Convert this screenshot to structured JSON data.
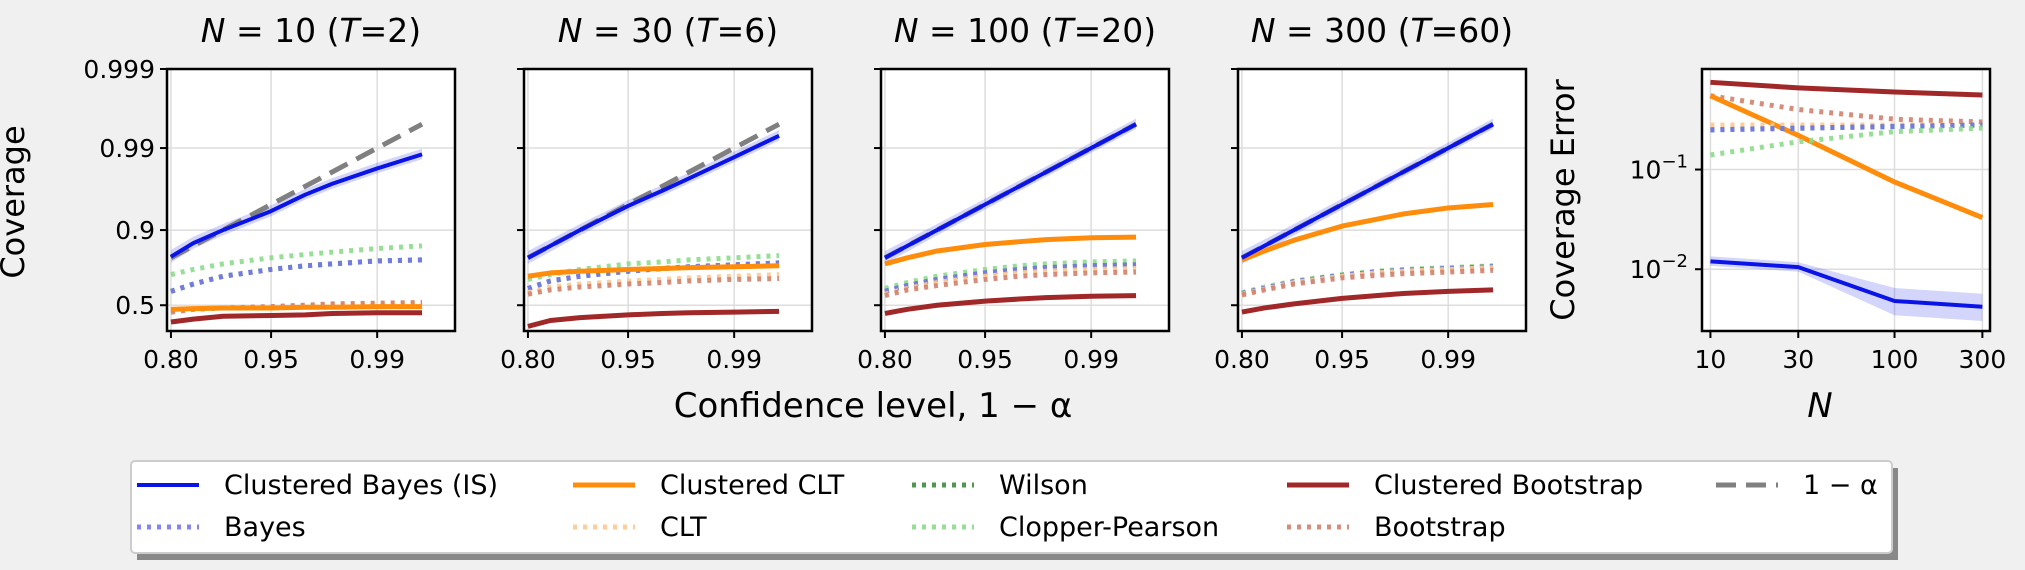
{
  "colors": {
    "background": "#f0f0f0",
    "clustered_bayes": "#0a14e6",
    "bayes": "#7878f0",
    "clustered_clt": "#ff8c0a",
    "clt": "#ffc891",
    "wilson": "#3c8c3c",
    "clopper_pearson": "#8cdc8c",
    "clustered_bootstrap": "#a02828",
    "bootstrap": "#d2826e",
    "nominal": "#808080"
  },
  "figure": {
    "y_axis_label": "Coverage",
    "x_axis_label": "Confidence level, 1 − α",
    "right_y_axis_label": "Coverage Error",
    "right_x_axis_label": "N"
  },
  "legend": {
    "placement": "bottom-center",
    "entries": [
      {
        "key": "clustered_bayes",
        "label": "Clustered Bayes (IS)",
        "style": "solid"
      },
      {
        "key": "bayes",
        "label": "Bayes",
        "style": "dotted"
      },
      {
        "key": "clustered_clt",
        "label": "Clustered CLT",
        "style": "solid"
      },
      {
        "key": "clt",
        "label": "CLT",
        "style": "dotted"
      },
      {
        "key": "wilson",
        "label": "Wilson",
        "style": "dotted"
      },
      {
        "key": "clopper_pearson",
        "label": "Clopper-Pearson",
        "style": "dotted"
      },
      {
        "key": "clustered_bootstrap",
        "label": "Clustered Bootstrap",
        "style": "solid"
      },
      {
        "key": "bootstrap",
        "label": "Bootstrap",
        "style": "dotted"
      },
      {
        "key": "nominal",
        "label": "1 − α",
        "style": "dashed"
      }
    ]
  },
  "chart_data": [
    {
      "type": "line",
      "title": "N = 10 (T=2)",
      "title_parts": {
        "n_label": "N",
        "n_value": " = 10 (",
        "t_label": "T",
        "t_value": "=2)"
      },
      "x_scale": "logit",
      "y_scale": "logit",
      "x_ticks": [
        "0.80",
        "0.95",
        "0.99"
      ],
      "y_ticks": [
        "0.5",
        "0.9",
        "0.99",
        "0.999"
      ],
      "show_y_tick_labels": true,
      "grid": true,
      "x": [
        0.8,
        0.85,
        0.9,
        0.95,
        0.97,
        0.98,
        0.99,
        0.995
      ],
      "series": [
        {
          "key": "nominal",
          "values": [
            0.8,
            0.85,
            0.9,
            0.95,
            0.97,
            0.98,
            0.99,
            0.995
          ]
        },
        {
          "key": "clopper_pearson",
          "values": [
            0.71,
            0.74,
            0.77,
            0.8,
            0.815,
            0.825,
            0.84,
            0.85
          ]
        },
        {
          "key": "wilson",
          "values": [
            0.6,
            0.65,
            0.7,
            0.74,
            0.76,
            0.77,
            0.785,
            0.79
          ]
        },
        {
          "key": "bayes",
          "values": [
            0.6,
            0.65,
            0.7,
            0.74,
            0.76,
            0.77,
            0.785,
            0.79
          ]
        },
        {
          "key": "clt",
          "values": [
            0.46,
            0.47,
            0.48,
            0.49,
            0.5,
            0.505,
            0.51,
            0.515
          ]
        },
        {
          "key": "bootstrap",
          "values": [
            0.45,
            0.47,
            0.48,
            0.49,
            0.5,
            0.51,
            0.515,
            0.52
          ]
        },
        {
          "key": "clustered_clt",
          "values": [
            0.47,
            0.475,
            0.48,
            0.48,
            0.485,
            0.485,
            0.49,
            0.49
          ]
        },
        {
          "key": "clustered_bootstrap",
          "values": [
            0.38,
            0.4,
            0.42,
            0.425,
            0.43,
            0.44,
            0.445,
            0.445
          ]
        },
        {
          "key": "clustered_bayes",
          "values": [
            0.805,
            0.86,
            0.9,
            0.94,
            0.962,
            0.972,
            0.982,
            0.988
          ]
        }
      ]
    },
    {
      "type": "line",
      "title": "N = 30 (T=6)",
      "title_parts": {
        "n_label": "N",
        "n_value": " = 30 (",
        "t_label": "T",
        "t_value": "=6)"
      },
      "x_scale": "logit",
      "y_scale": "logit",
      "x_ticks": [
        "0.80",
        "0.95",
        "0.99"
      ],
      "y_ticks": [
        "0.5",
        "0.9",
        "0.99",
        "0.999"
      ],
      "show_y_tick_labels": false,
      "grid": true,
      "x": [
        0.8,
        0.85,
        0.9,
        0.95,
        0.97,
        0.98,
        0.99,
        0.995
      ],
      "series": [
        {
          "key": "nominal",
          "values": [
            0.8,
            0.85,
            0.9,
            0.95,
            0.97,
            0.98,
            0.99,
            0.995
          ]
        },
        {
          "key": "clopper_pearson",
          "values": [
            0.68,
            0.71,
            0.74,
            0.77,
            0.78,
            0.79,
            0.8,
            0.81
          ]
        },
        {
          "key": "wilson",
          "values": [
            0.62,
            0.67,
            0.7,
            0.73,
            0.745,
            0.755,
            0.765,
            0.775
          ]
        },
        {
          "key": "bayes",
          "values": [
            0.62,
            0.67,
            0.7,
            0.73,
            0.745,
            0.755,
            0.765,
            0.775
          ]
        },
        {
          "key": "clt",
          "values": [
            0.59,
            0.63,
            0.65,
            0.67,
            0.68,
            0.69,
            0.7,
            0.71
          ]
        },
        {
          "key": "bootstrap",
          "values": [
            0.58,
            0.61,
            0.63,
            0.65,
            0.66,
            0.67,
            0.68,
            0.685
          ]
        },
        {
          "key": "clustered_clt",
          "values": [
            0.7,
            0.72,
            0.73,
            0.74,
            0.745,
            0.75,
            0.755,
            0.76
          ]
        },
        {
          "key": "clustered_bootstrap",
          "values": [
            0.35,
            0.39,
            0.41,
            0.43,
            0.44,
            0.445,
            0.45,
            0.455
          ]
        },
        {
          "key": "clustered_bayes",
          "values": [
            0.8,
            0.85,
            0.9,
            0.948,
            0.966,
            0.976,
            0.987,
            0.993
          ]
        }
      ]
    },
    {
      "type": "line",
      "title": "N = 100 (T=20)",
      "title_parts": {
        "n_label": "N",
        "n_value": " = 100 (",
        "t_label": "T",
        "t_value": "=20)"
      },
      "x_scale": "logit",
      "y_scale": "logit",
      "x_ticks": [
        "0.80",
        "0.95",
        "0.99"
      ],
      "y_ticks": [
        "0.5",
        "0.9",
        "0.99",
        "0.999"
      ],
      "show_y_tick_labels": false,
      "grid": true,
      "x": [
        0.8,
        0.85,
        0.9,
        0.95,
        0.97,
        0.98,
        0.99,
        0.995
      ],
      "series": [
        {
          "key": "nominal",
          "values": [
            0.8,
            0.85,
            0.9,
            0.95,
            0.97,
            0.98,
            0.99,
            0.995
          ]
        },
        {
          "key": "clopper_pearson",
          "values": [
            0.62,
            0.66,
            0.7,
            0.74,
            0.76,
            0.77,
            0.78,
            0.785
          ]
        },
        {
          "key": "wilson",
          "values": [
            0.6,
            0.64,
            0.68,
            0.72,
            0.74,
            0.75,
            0.76,
            0.765
          ]
        },
        {
          "key": "bayes",
          "values": [
            0.6,
            0.64,
            0.68,
            0.72,
            0.74,
            0.75,
            0.76,
            0.765
          ]
        },
        {
          "key": "clt",
          "values": [
            0.58,
            0.62,
            0.66,
            0.7,
            0.72,
            0.73,
            0.74,
            0.745
          ]
        },
        {
          "key": "bootstrap",
          "values": [
            0.57,
            0.61,
            0.64,
            0.68,
            0.7,
            0.71,
            0.72,
            0.725
          ]
        },
        {
          "key": "clustered_clt",
          "values": [
            0.77,
            0.8,
            0.83,
            0.855,
            0.865,
            0.872,
            0.878,
            0.88
          ]
        },
        {
          "key": "clustered_bootstrap",
          "values": [
            0.44,
            0.47,
            0.5,
            0.53,
            0.545,
            0.555,
            0.565,
            0.57
          ]
        },
        {
          "key": "clustered_bayes",
          "values": [
            0.8,
            0.85,
            0.9,
            0.95,
            0.97,
            0.98,
            0.99,
            0.995
          ]
        }
      ]
    },
    {
      "type": "line",
      "title": "N = 300 (T=60)",
      "title_parts": {
        "n_label": "N",
        "n_value": " = 300 (",
        "t_label": "T",
        "t_value": "=60)"
      },
      "x_scale": "logit",
      "y_scale": "logit",
      "x_ticks": [
        "0.80",
        "0.95",
        "0.99"
      ],
      "y_ticks": [
        "0.5",
        "0.9",
        "0.99",
        "0.999"
      ],
      "show_y_tick_labels": false,
      "grid": true,
      "x": [
        0.8,
        0.85,
        0.9,
        0.95,
        0.97,
        0.98,
        0.99,
        0.995
      ],
      "series": [
        {
          "key": "nominal",
          "values": [
            0.8,
            0.85,
            0.9,
            0.95,
            0.97,
            0.98,
            0.99,
            0.995
          ]
        },
        {
          "key": "clopper_pearson",
          "values": [
            0.59,
            0.63,
            0.67,
            0.71,
            0.73,
            0.74,
            0.75,
            0.76
          ]
        },
        {
          "key": "wilson",
          "values": [
            0.585,
            0.62,
            0.665,
            0.705,
            0.725,
            0.735,
            0.745,
            0.755
          ]
        },
        {
          "key": "bayes",
          "values": [
            0.585,
            0.62,
            0.665,
            0.705,
            0.725,
            0.735,
            0.745,
            0.755
          ]
        },
        {
          "key": "clt",
          "values": [
            0.58,
            0.615,
            0.66,
            0.7,
            0.72,
            0.73,
            0.74,
            0.75
          ]
        },
        {
          "key": "bootstrap",
          "values": [
            0.575,
            0.61,
            0.65,
            0.69,
            0.705,
            0.715,
            0.725,
            0.735
          ]
        },
        {
          "key": "clustered_clt",
          "values": [
            0.79,
            0.83,
            0.87,
            0.91,
            0.925,
            0.935,
            0.945,
            0.95
          ]
        },
        {
          "key": "clustered_bootstrap",
          "values": [
            0.45,
            0.48,
            0.51,
            0.55,
            0.57,
            0.585,
            0.6,
            0.61
          ]
        },
        {
          "key": "clustered_bayes",
          "values": [
            0.8,
            0.85,
            0.9,
            0.95,
            0.97,
            0.98,
            0.99,
            0.995
          ]
        }
      ]
    },
    {
      "type": "line",
      "title": "",
      "x_scale": "log",
      "y_scale": "log",
      "x_ticks": [
        "10",
        "30",
        "100",
        "300"
      ],
      "y_ticks": [
        "10−2",
        "10−1"
      ],
      "y_tick_parts": [
        {
          "base": "10",
          "exp": "−2"
        },
        {
          "base": "10",
          "exp": "−1"
        }
      ],
      "grid": true,
      "x": [
        10,
        30,
        100,
        300
      ],
      "series": [
        {
          "key": "clustered_bootstrap",
          "values": [
            0.75,
            0.66,
            0.6,
            0.56
          ]
        },
        {
          "key": "bootstrap",
          "values": [
            0.55,
            0.4,
            0.32,
            0.3
          ]
        },
        {
          "key": "clustered_clt",
          "values": [
            0.55,
            0.22,
            0.075,
            0.033
          ]
        },
        {
          "key": "clt",
          "values": [
            0.28,
            0.28,
            0.28,
            0.28
          ]
        },
        {
          "key": "wilson",
          "values": [
            0.25,
            0.26,
            0.27,
            0.28
          ]
        },
        {
          "key": "bayes",
          "values": [
            0.25,
            0.26,
            0.27,
            0.28
          ]
        },
        {
          "key": "clopper_pearson",
          "values": [
            0.14,
            0.19,
            0.24,
            0.26
          ]
        },
        {
          "key": "clustered_bayes",
          "values": [
            0.012,
            0.0105,
            0.0048,
            0.0042
          ]
        }
      ]
    }
  ]
}
